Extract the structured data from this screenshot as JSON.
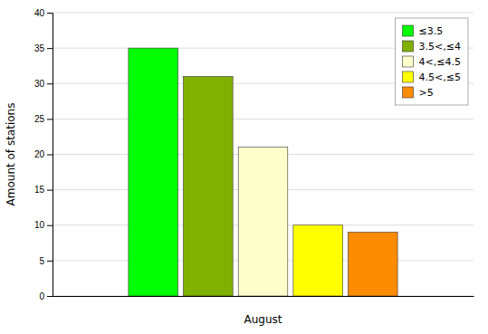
{
  "chart_data": {
    "type": "bar",
    "xlabel": "August",
    "ylabel": "Amount of stations",
    "categories": [
      "August"
    ],
    "series": [
      {
        "name": "≤3.5",
        "color": "#00ff00",
        "values": [
          35
        ]
      },
      {
        "name": "3.5<,≤4",
        "color": "#80b000",
        "values": [
          31
        ]
      },
      {
        "name": "4<,≤4.5",
        "color": "#ffffcc",
        "values": [
          21
        ]
      },
      {
        "name": "4.5<,≤5",
        "color": "#ffff00",
        "values": [
          10
        ]
      },
      {
        "name": ">5",
        "color": "#ff8c00",
        "values": [
          9
        ]
      }
    ],
    "ylim": [
      0,
      40
    ],
    "yticks": [
      0,
      5,
      10,
      15,
      20,
      25,
      30,
      35,
      40
    ],
    "grid": true,
    "legend": "upper right",
    "tick_labels": "y"
  }
}
